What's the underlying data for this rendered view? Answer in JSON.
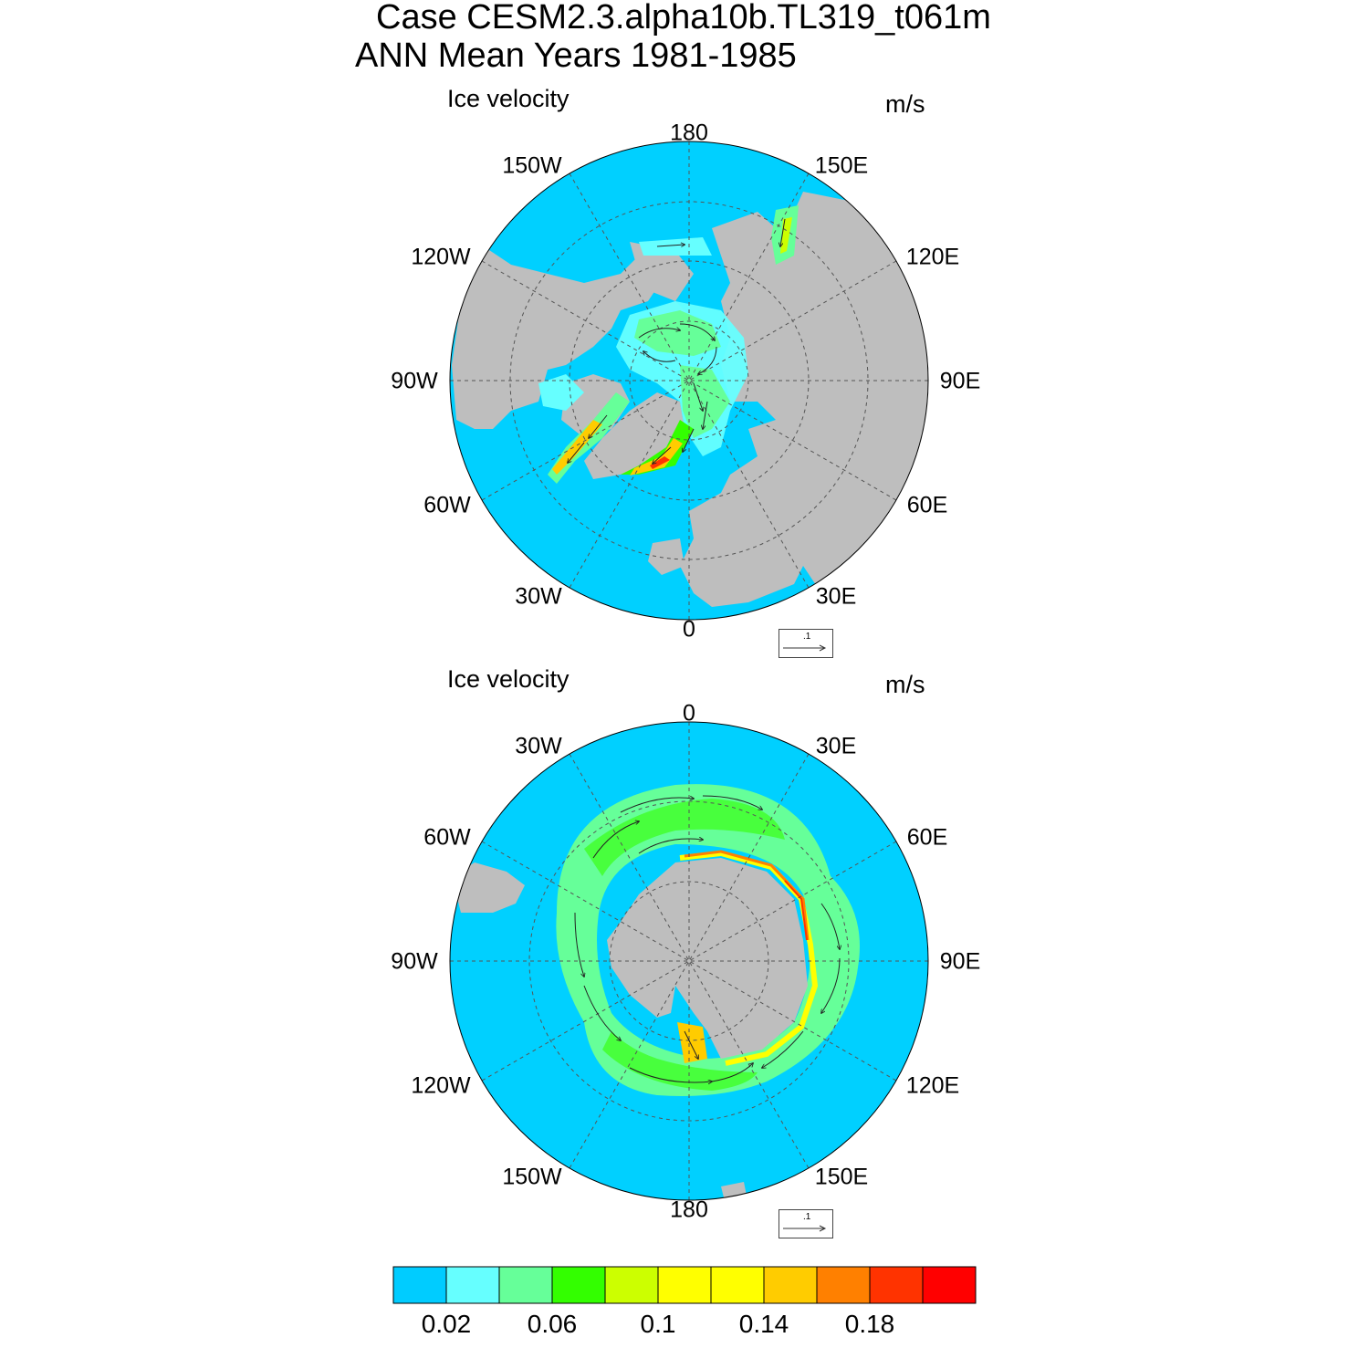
{
  "header": {
    "line1": "Case CESM2.3.alpha10b.TL319_t061m",
    "line2": "ANN Mean   Years 1981-1985"
  },
  "colors": {
    "ocean": "#00d0ff",
    "land": "#bebebe",
    "grid": "#555555"
  },
  "chart_data": [
    {
      "type": "polar-contour-vector",
      "hemisphere": "north",
      "title": "Ice velocity",
      "units": "m/s",
      "lon_labels": [
        "180",
        "150E",
        "120E",
        "90E",
        "60E",
        "30E",
        "0",
        "30W",
        "60W",
        "90W",
        "120W",
        "150W"
      ],
      "reference_vector": ".1"
    },
    {
      "type": "polar-contour-vector",
      "hemisphere": "south",
      "title": "Ice velocity",
      "units": "m/s",
      "lon_labels": [
        "0",
        "30E",
        "60E",
        "90E",
        "120E",
        "150E",
        "180",
        "150W",
        "120W",
        "90W",
        "60W",
        "30W"
      ],
      "reference_vector": ".1"
    },
    {
      "type": "colorbar",
      "levels": [
        0.02,
        0.04,
        0.06,
        0.08,
        0.1,
        0.12,
        0.14,
        0.16,
        0.18,
        0.2
      ],
      "tick_labels": [
        "0.02",
        "0.06",
        "0.1",
        "0.14",
        "0.18"
      ],
      "colors": [
        "#00ccff",
        "#66ffff",
        "#66ff99",
        "#33ff00",
        "#ccff00",
        "#ffff00",
        "#ffff00",
        "#ffcc00",
        "#ff8000",
        "#ff3300",
        "#ff0000"
      ]
    }
  ]
}
